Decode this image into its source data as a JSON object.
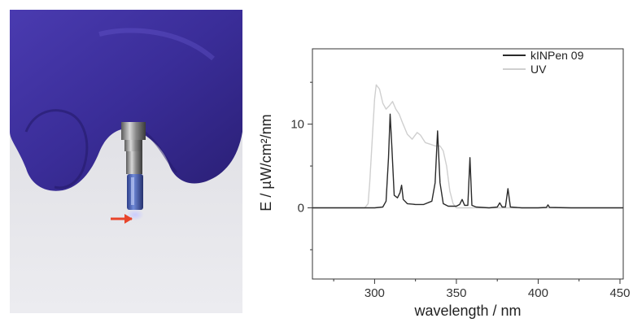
{
  "colors": {
    "glove": "#3c2f9c",
    "glove_shadow": "#241a6b",
    "background_surface": "#e4e4e8",
    "arrow": "#e8442a",
    "kinpen_line": "#2a2a2a",
    "uv_line": "#cfcfcf"
  },
  "photo": {
    "description_icons": [
      "gloved-hand",
      "plasma-jet-device",
      "red-arrow"
    ]
  },
  "chart_data": {
    "type": "line",
    "title": "",
    "xlabel": "wavelength / nm",
    "ylabel": "E / µW/cm²/nm",
    "xlim": [
      262,
      452
    ],
    "ylim": [
      -8.5,
      19
    ],
    "x_ticks": [
      300,
      350,
      400,
      450
    ],
    "y_ticks": [
      0,
      10
    ],
    "grid": false,
    "legend_position": "top-right",
    "series": [
      {
        "name": "kINPen 09",
        "color": "#2a2a2a",
        "points": [
          [
            262,
            0
          ],
          [
            300,
            0
          ],
          [
            305,
            0.1
          ],
          [
            307,
            0.8
          ],
          [
            308.5,
            6
          ],
          [
            309.5,
            11.2
          ],
          [
            310.5,
            7.5
          ],
          [
            312,
            1.5
          ],
          [
            314,
            1.2
          ],
          [
            315.5,
            1.8
          ],
          [
            316.5,
            2.7
          ],
          [
            317.5,
            1.0
          ],
          [
            320,
            0.5
          ],
          [
            325,
            0.4
          ],
          [
            330,
            0.4
          ],
          [
            335,
            0.8
          ],
          [
            337,
            3
          ],
          [
            338.5,
            9.2
          ],
          [
            340,
            3
          ],
          [
            342,
            0.5
          ],
          [
            345,
            0.2
          ],
          [
            350,
            0.2
          ],
          [
            352,
            0.4
          ],
          [
            353.5,
            1.0
          ],
          [
            355,
            0.3
          ],
          [
            357,
            0.3
          ],
          [
            358.3,
            6
          ],
          [
            359.5,
            0.3
          ],
          [
            362,
            0.1
          ],
          [
            370,
            0
          ],
          [
            375,
            0.1
          ],
          [
            376.5,
            0.6
          ],
          [
            378,
            0.1
          ],
          [
            380,
            0.1
          ],
          [
            381.5,
            2.3
          ],
          [
            383,
            0.1
          ],
          [
            390,
            0
          ],
          [
            400,
            0
          ],
          [
            405,
            0.05
          ],
          [
            406,
            0.35
          ],
          [
            407,
            0.05
          ],
          [
            420,
            0
          ],
          [
            452,
            0
          ]
        ]
      },
      {
        "name": "UV",
        "color": "#cfcfcf",
        "points": [
          [
            262,
            0
          ],
          [
            294,
            0
          ],
          [
            296,
            0.5
          ],
          [
            297,
            3
          ],
          [
            298.5,
            8
          ],
          [
            300,
            13
          ],
          [
            301,
            14.7
          ],
          [
            303,
            14.2
          ],
          [
            305,
            12.5
          ],
          [
            307,
            11.8
          ],
          [
            309,
            12.2
          ],
          [
            311,
            12.7
          ],
          [
            313,
            11.8
          ],
          [
            315,
            11.2
          ],
          [
            317,
            10.2
          ],
          [
            320,
            8.8
          ],
          [
            323,
            8.2
          ],
          [
            326,
            9.0
          ],
          [
            328,
            8.7
          ],
          [
            331,
            7.8
          ],
          [
            334,
            7.6
          ],
          [
            337,
            7.4
          ],
          [
            340,
            7.4
          ],
          [
            342,
            6.8
          ],
          [
            344,
            5
          ],
          [
            346,
            2
          ],
          [
            348,
            0.5
          ],
          [
            350,
            0
          ],
          [
            452,
            0
          ]
        ]
      }
    ]
  }
}
